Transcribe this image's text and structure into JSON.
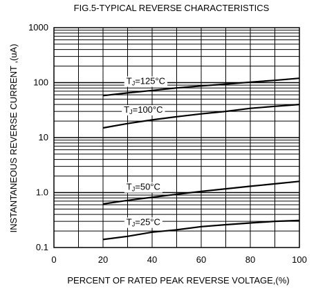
{
  "chart_data": {
    "type": "line",
    "title": "FIG.5-TYPICAL REVERSE CHARACTERISTICS",
    "xlabel": "PERCENT OF RATED PEAK REVERSE VOLTAGE,(%)",
    "ylabel": "INSTANTANEOUS  REVERSE  CURRENT ,(uA)",
    "xlim": [
      0,
      100
    ],
    "ylim": [
      0.1,
      1000
    ],
    "yscale": "log",
    "grid": true,
    "x_ticks": [
      0,
      20,
      40,
      60,
      80,
      100
    ],
    "x_tick_labels": [
      "0",
      "20",
      "40",
      "60",
      "80",
      "100"
    ],
    "y_ticks": [
      0.1,
      1.0,
      10,
      100,
      1000
    ],
    "y_tick_labels": [
      "0.1",
      "1.0",
      "10",
      "100",
      "1000"
    ],
    "series": [
      {
        "name": "TJ=125°C",
        "label_main": "T",
        "label_sub": "J",
        "label_rest": "=125°C",
        "x": [
          20,
          30,
          40,
          50,
          60,
          70,
          80,
          90,
          100
        ],
        "y": [
          58,
          65,
          72,
          80,
          87,
          94,
          102,
          110,
          120
        ]
      },
      {
        "name": "TJ=100°C",
        "label_main": "T",
        "label_sub": "J",
        "label_rest": "=100°C",
        "x": [
          20,
          30,
          40,
          50,
          60,
          70,
          80,
          90,
          100
        ],
        "y": [
          15,
          18,
          21,
          24,
          27,
          30,
          34,
          37,
          40
        ]
      },
      {
        "name": "TJ=50°C",
        "label_main": "T",
        "label_sub": "J",
        "label_rest": "=50°C",
        "x": [
          20,
          30,
          40,
          50,
          60,
          70,
          80,
          90,
          100
        ],
        "y": [
          0.62,
          0.72,
          0.82,
          0.93,
          1.05,
          1.17,
          1.3,
          1.44,
          1.6
        ]
      },
      {
        "name": "TJ=25°C",
        "label_main": "T",
        "label_sub": "J",
        "label_rest": "=25°C",
        "x": [
          20,
          30,
          40,
          50,
          60,
          70,
          80,
          90,
          100
        ],
        "y": [
          0.14,
          0.16,
          0.19,
          0.21,
          0.24,
          0.26,
          0.28,
          0.3,
          0.31
        ]
      }
    ]
  }
}
